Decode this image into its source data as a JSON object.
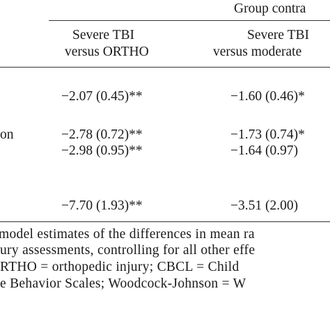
{
  "header": {
    "group_label": "Group contra"
  },
  "columns": [
    {
      "line1": "Severe TBI",
      "line2": "versus ORTHO"
    },
    {
      "line1": "Severe TBI",
      "line2": "versus moderate"
    }
  ],
  "rows": [
    {
      "values": [
        "−2.07 (0.45)**",
        "−1.60 (0.46)*"
      ]
    },
    {
      "label": "on",
      "values": [
        "−2.78 (0.72)**",
        "−1.73 (0.74)*"
      ]
    },
    {
      "values": [
        "−2.98 (0.95)**",
        "−1.64 (0.97)"
      ]
    },
    {
      "values": [
        "−7.70 (1.93)**",
        "−3.51 (2.00)"
      ]
    }
  ],
  "footnote": [
    " model estimates of the differences in mean ra",
    "ury assessments, controlling for all other effe",
    "RTHO = orthopedic injury; CBCL = Child ",
    "e Behavior Scales; Woodcock-Johnson = W"
  ]
}
